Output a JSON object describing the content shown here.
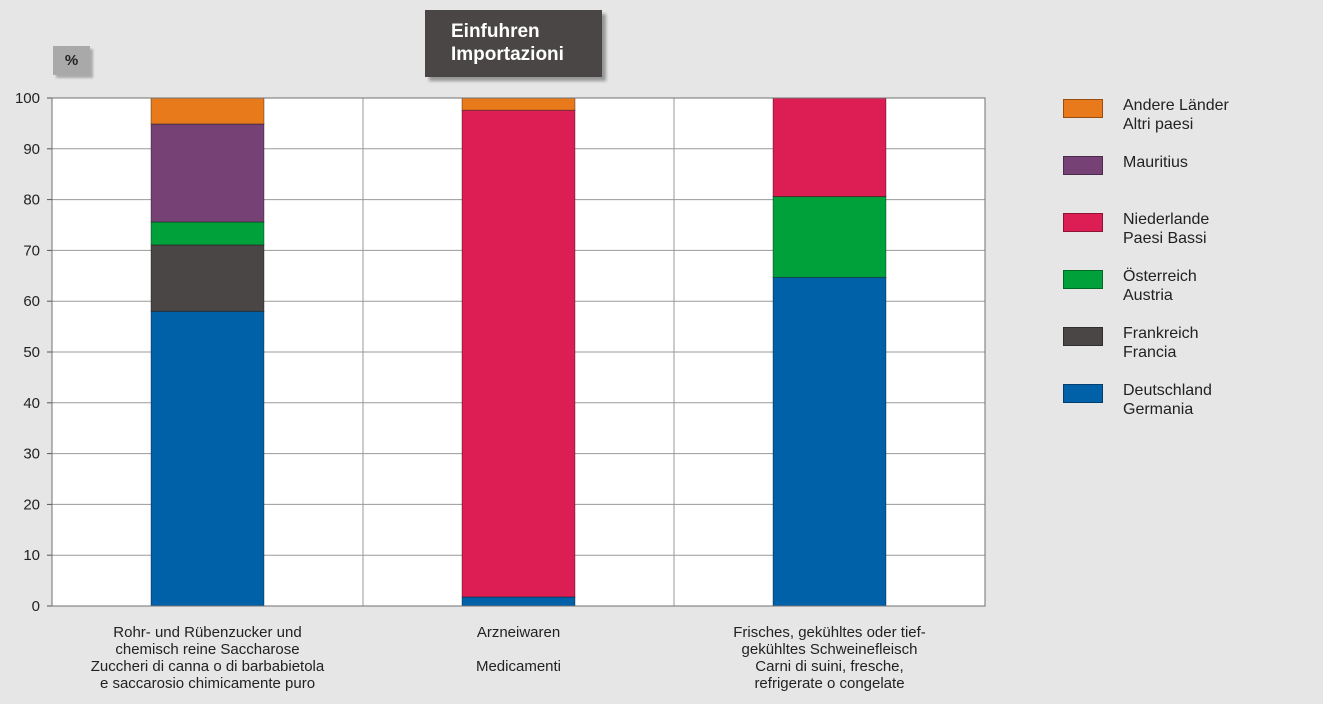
{
  "title_box": {
    "line1": "Einfuhren",
    "line2": "Importazioni"
  },
  "unit_label": "%",
  "chart_data": {
    "type": "bar",
    "stacked": true,
    "title": "Einfuhren Importazioni",
    "ylabel": "%",
    "ylim": [
      0,
      100
    ],
    "yticks": [
      0,
      10,
      20,
      30,
      40,
      50,
      60,
      70,
      80,
      90,
      100
    ],
    "grid": true,
    "legend_position": "right",
    "categories": [
      {
        "lines": [
          "Rohr- und Rübenzucker und",
          "chemisch reine Saccharose",
          "Zuccheri di canna o di barbabietola",
          "e saccarosio chimicamente puro"
        ]
      },
      {
        "lines": [
          "Arzneiwaren",
          "",
          "Medicamenti"
        ]
      },
      {
        "lines": [
          "Frisches, gekühltes oder tief-",
          "gekühltes Schweinefleisch",
          "Carni di suini, fresche,",
          "refrigerate o congelate"
        ]
      }
    ],
    "series": [
      {
        "key": "deutschland",
        "name": "Deutschland Germania",
        "label_lines": [
          "Deutschland",
          "Germania"
        ],
        "color": "#0061a8",
        "values": [
          58.0,
          1.8,
          64.7
        ]
      },
      {
        "key": "frankreich",
        "name": "Frankreich Francia",
        "label_lines": [
          "Frankreich",
          "Francia"
        ],
        "color": "#4a4646",
        "values": [
          13.1,
          0,
          0
        ]
      },
      {
        "key": "oesterreich",
        "name": "Österreich Austria",
        "label_lines": [
          "Österreich",
          "Austria"
        ],
        "color": "#00a13a",
        "values": [
          4.5,
          0,
          15.9
        ]
      },
      {
        "key": "niederlande",
        "name": "Niederlande Paesi Bassi",
        "label_lines": [
          "Niederlande",
          "Paesi Bassi"
        ],
        "color": "#dc1e55",
        "values": [
          0,
          95.8,
          19.4
        ]
      },
      {
        "key": "mauritius",
        "name": "Mauritius",
        "label_lines": [
          "Mauritius"
        ],
        "color": "#764275",
        "values": [
          19.3,
          0,
          0
        ]
      },
      {
        "key": "andere",
        "name": "Andere Länder Altri paesi",
        "label_lines": [
          "Andere Länder",
          "Altri paesi"
        ],
        "color": "#e87a1b",
        "values": [
          5.1,
          2.4,
          0
        ]
      }
    ]
  }
}
